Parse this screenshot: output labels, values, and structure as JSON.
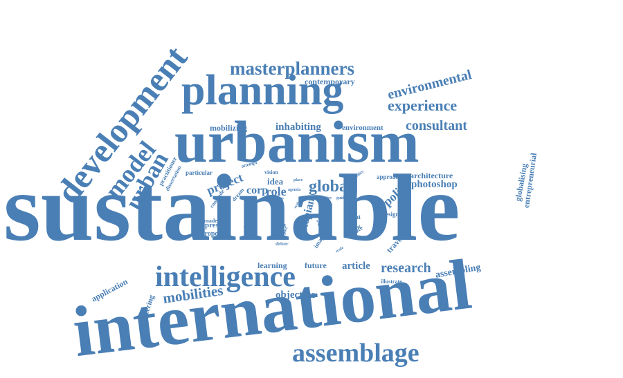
{
  "palette": {
    "word": "#4a7fb5",
    "background": "#ffffff"
  },
  "words": [
    "sustainable",
    "international",
    "urbanism",
    "planning",
    "development",
    "intelligence",
    "assemblage",
    "masterplanners",
    "model",
    "urban",
    "global",
    "experience",
    "environmental",
    "consultant",
    "research",
    "mobilities",
    "project",
    "role",
    "policy",
    "photoshop",
    "inhabiting",
    "mobilizing",
    "article",
    "objective",
    "assembling",
    "contemporary",
    "environment",
    "architecture",
    "corp",
    "idea",
    "utopian",
    "paper",
    "city",
    "learning",
    "future",
    "application",
    "engineering",
    "globalising",
    "entrepreneurial",
    "travel",
    "present",
    "proposal",
    "broader",
    "particular",
    "practitioner",
    "dissertation",
    "conclude",
    "dream",
    "vision",
    "attempt",
    "approach",
    "design",
    "client",
    "estate",
    "group",
    "driver",
    "illustrate",
    "image",
    "material",
    "form",
    "place",
    "plan",
    "mobility",
    "cities",
    "guide",
    "post",
    "rank",
    "real",
    "year",
    "agenda",
    "local",
    "scale"
  ]
}
